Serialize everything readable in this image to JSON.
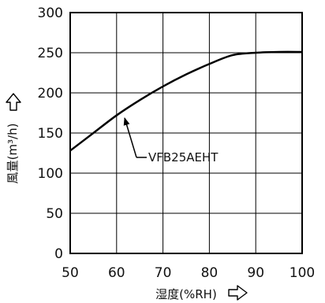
{
  "chart_data": {
    "type": "line",
    "xlabel": "湿度(%RH)",
    "ylabel": "風量(m³/h)",
    "xlim": [
      50,
      100
    ],
    "ylim": [
      0,
      300
    ],
    "x_ticks": [
      50,
      60,
      70,
      80,
      90,
      100
    ],
    "y_ticks": [
      0,
      50,
      100,
      150,
      200,
      250,
      300
    ],
    "grid": true,
    "series": [
      {
        "name": "VFB25AEHT",
        "x": [
          50,
          55,
          60,
          65,
          70,
          75,
          80,
          85,
          90,
          95,
          100
        ],
        "y": [
          128,
          150,
          172,
          191,
          208,
          223,
          236,
          247,
          250,
          251,
          251
        ]
      }
    ]
  }
}
